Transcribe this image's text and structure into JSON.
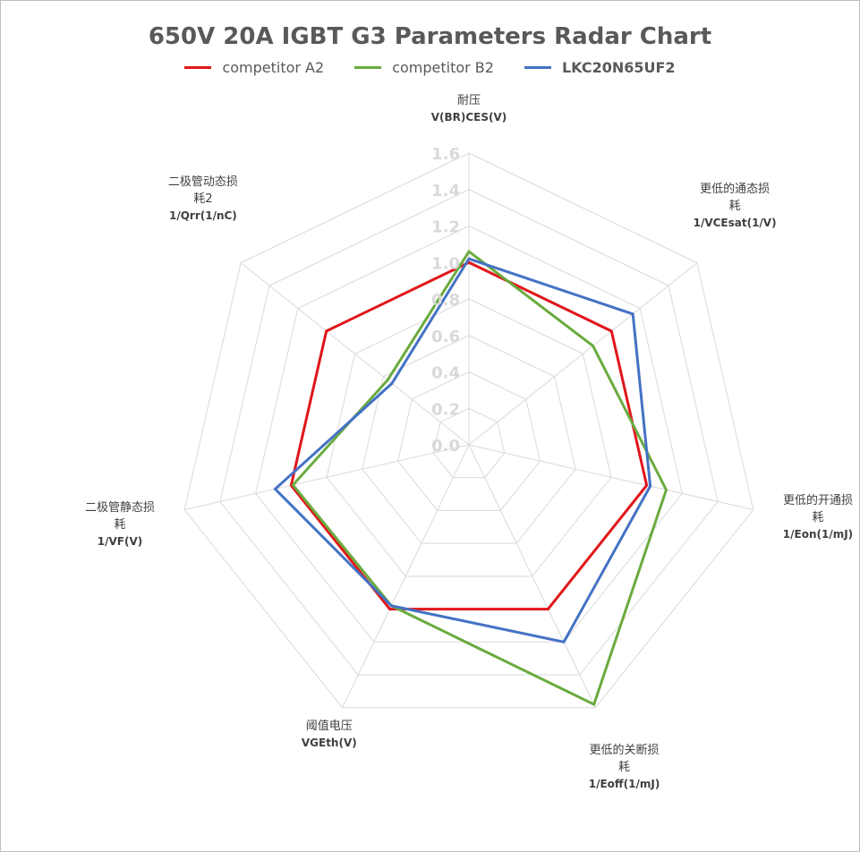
{
  "chart_data": {
    "type": "radar",
    "title": "650V 20A IGBT G3 Parameters Radar Chart",
    "axes": [
      {
        "line1": "耐压",
        "line2": "",
        "unit": "V(BR)CES(V)"
      },
      {
        "line1": "更低的通态损",
        "line2": "耗",
        "unit": "1/VCEsat(1/V)"
      },
      {
        "line1": "更低的开通损",
        "line2": "耗",
        "unit": "1/Eon(1/mJ)"
      },
      {
        "line1": "更低的关断损",
        "line2": "耗",
        "unit": "1/Eoff(1/mJ)"
      },
      {
        "line1": "阈值电压",
        "line2": "",
        "unit": "VGEth(V)"
      },
      {
        "line1": "二极管静态损",
        "line2": "耗",
        "unit": "1/VF(V)"
      },
      {
        "line1": "二极管动态损",
        "line2": "耗2",
        "unit": "1/Qrr(1/nC)"
      }
    ],
    "ticks": [
      "0.0",
      "0.2",
      "0.4",
      "0.6",
      "0.8",
      "1.0",
      "1.2",
      "1.4",
      "1.6"
    ],
    "rmax": 1.6,
    "series": [
      {
        "name": "competitor A2",
        "color": "#e0161b",
        "values": [
          1.0,
          1.0,
          1.0,
          1.0,
          1.0,
          1.0,
          1.0
        ]
      },
      {
        "name": "competitor B2",
        "color": "#6aab3f",
        "values": [
          1.06,
          0.87,
          1.11,
          1.58,
          0.98,
          0.99,
          0.57
        ]
      },
      {
        "name": "LKC20N65UF2",
        "color": "#4472c4",
        "values": [
          1.02,
          1.15,
          1.02,
          1.2,
          0.98,
          1.09,
          0.54
        ]
      }
    ]
  }
}
